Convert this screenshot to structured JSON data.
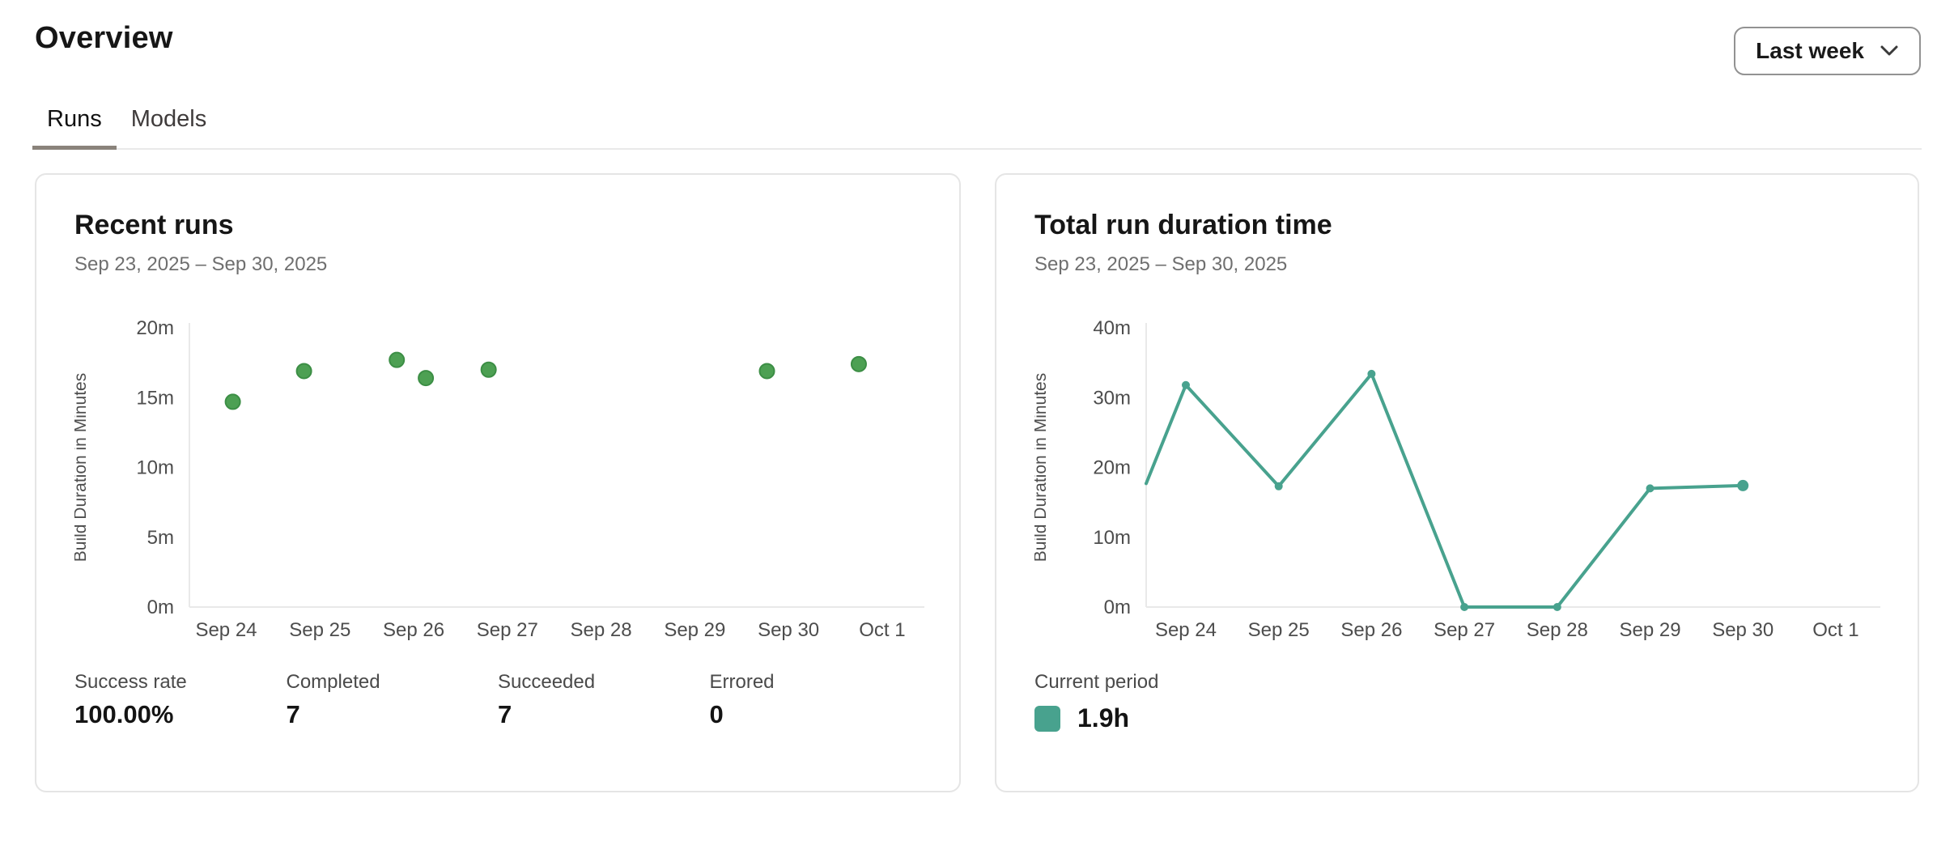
{
  "header": {
    "title": "Overview",
    "period_selector": {
      "value": "Last week"
    }
  },
  "tabs": [
    {
      "label": "Runs",
      "active": true
    },
    {
      "label": "Models",
      "active": false
    }
  ],
  "cards": {
    "recent_runs": {
      "title": "Recent runs",
      "date_range": "Sep 23, 2025 – Sep 30, 2025",
      "stats": [
        {
          "label": "Success rate",
          "value": "100.00%"
        },
        {
          "label": "Completed",
          "value": "7"
        },
        {
          "label": "Succeeded",
          "value": "7"
        },
        {
          "label": "Errored",
          "value": "0"
        }
      ]
    },
    "total_run_duration": {
      "title": "Total run duration time",
      "date_range": "Sep 23, 2025 – Sep 30, 2025",
      "legend": {
        "label": "Current period",
        "value": "1.9h",
        "swatch_color": "#48a28e"
      }
    }
  },
  "chart_data": [
    {
      "id": "recent-runs",
      "type": "scatter",
      "title": "Recent runs",
      "xlabel": "",
      "ylabel": "Build Duration in Minutes",
      "x_tick_labels": [
        "Sep 24",
        "Sep 25",
        "Sep 26",
        "Sep 27",
        "Sep 28",
        "Sep 29",
        "Sep 30",
        "Oct 1"
      ],
      "x_tick_days": [
        1,
        2,
        3,
        4,
        5,
        6,
        7,
        8
      ],
      "x_range_days": [
        0.607,
        8.45
      ],
      "ylim": [
        0,
        20
      ],
      "y_ticks": [
        {
          "label": "0m",
          "value": 0
        },
        {
          "label": "5m",
          "value": 5
        },
        {
          "label": "10m",
          "value": 10
        },
        {
          "label": "15m",
          "value": 15
        },
        {
          "label": "20m",
          "value": 20
        }
      ],
      "unit": "minutes",
      "grid": false,
      "points_days_minutes": [
        [
          1.07,
          14.7
        ],
        [
          1.83,
          16.9
        ],
        [
          2.82,
          17.7
        ],
        [
          3.13,
          16.4
        ],
        [
          3.8,
          17.0
        ],
        [
          6.77,
          16.9
        ],
        [
          7.75,
          17.4
        ]
      ],
      "point_color": "#4da053",
      "point_stroke": "#3c8e45"
    },
    {
      "id": "total-run-duration",
      "type": "line",
      "title": "Total run duration time",
      "xlabel": "",
      "ylabel": "Build Duration in Minutes",
      "x_tick_labels": [
        "Sep 24",
        "Sep 25",
        "Sep 26",
        "Sep 27",
        "Sep 28",
        "Sep 29",
        "Sep 30",
        "Oct 1"
      ],
      "x_tick_days": [
        1,
        2,
        3,
        4,
        5,
        6,
        7,
        8
      ],
      "x_range_days": [
        0.573,
        8.48
      ],
      "ylim": [
        0,
        40
      ],
      "y_ticks": [
        {
          "label": "0m",
          "value": 0
        },
        {
          "label": "10m",
          "value": 10
        },
        {
          "label": "20m",
          "value": 20
        },
        {
          "label": "30m",
          "value": 30
        },
        {
          "label": "40m",
          "value": 40
        }
      ],
      "unit": "minutes",
      "grid": false,
      "points_days_minutes": [
        [
          0.573,
          17.7
        ],
        [
          1,
          31.8
        ],
        [
          2,
          17.3
        ],
        [
          3,
          33.4
        ],
        [
          4,
          0
        ],
        [
          5,
          0
        ],
        [
          6,
          17.0
        ],
        [
          7,
          17.4
        ]
      ],
      "line_color": "#48a28e",
      "legend_total": "1.9h"
    }
  ]
}
